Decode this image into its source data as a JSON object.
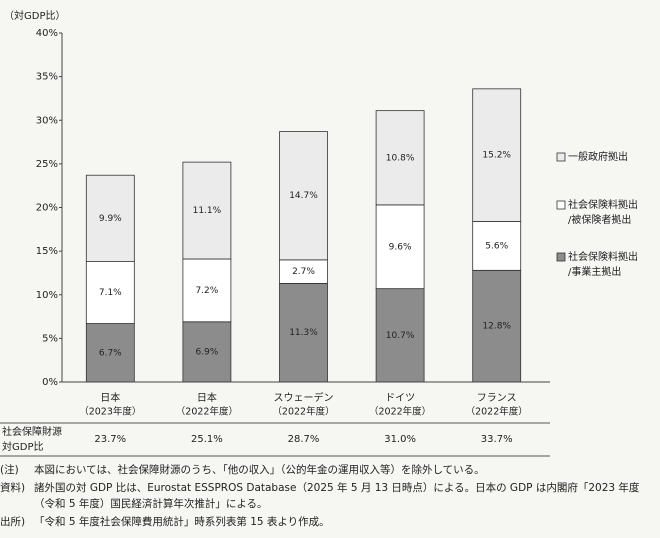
{
  "chart_data": {
    "type": "stacked_bar",
    "y_label": "（対GDP比）",
    "categories": [
      "日本",
      "日本",
      "スウェーデン",
      "ドイツ",
      "フランス"
    ],
    "periods": [
      "（2023年度）",
      "（2022年度）",
      "（2022年度）",
      "（2022年度）",
      "（2022年度）"
    ],
    "series": [
      {
        "name": "社会保険料拠出\n/事業主拠出",
        "color": "#8c8c8c",
        "values": [
          6.7,
          6.9,
          11.3,
          10.7,
          12.8
        ],
        "value_labels": [
          "6.7%",
          "6.9%",
          "11.3%",
          "10.7%",
          "12.8%"
        ]
      },
      {
        "name": "社会保険料拠出\n/被保険者拠出",
        "color": "#ffffff",
        "values": [
          7.1,
          7.2,
          2.7,
          9.6,
          5.6
        ],
        "value_labels": [
          "7.1%",
          "7.2%",
          "2.7%",
          "9.6%",
          "5.6%"
        ]
      },
      {
        "name": "一般政府拠出",
        "color": "#ebebeb",
        "values": [
          9.9,
          11.1,
          14.7,
          10.8,
          15.2
        ],
        "value_labels": [
          "9.9%",
          "11.1%",
          "14.7%",
          "10.8%",
          "15.2%"
        ]
      }
    ],
    "ylim": [
      0,
      40
    ],
    "yticks": [
      {
        "value": 0,
        "label": "0%"
      },
      {
        "value": 5,
        "label": "5%"
      },
      {
        "value": 10,
        "label": "10%"
      },
      {
        "value": 15,
        "label": "15%"
      },
      {
        "value": 20,
        "label": "20%"
      },
      {
        "value": 25,
        "label": "25%"
      },
      {
        "value": 30,
        "label": "30%"
      },
      {
        "value": 35,
        "label": "35%"
      },
      {
        "value": 40,
        "label": "40%"
      }
    ],
    "totals_label": "社会保障財源\n対GDP比",
    "totals": [
      "23.7%",
      "25.1%",
      "28.7%",
      "31.0%",
      "33.7%"
    ],
    "notes": [
      {
        "prefix": "(注)",
        "text": "本図においては、社会保障財源のうち、「他の収入」（公的年金の運用収入等）を除外している。"
      },
      {
        "prefix": "資料)",
        "text": "諸外国の対 GDP 比は、Eurostat ESSPROS Database（2025 年 5 月 13 日時点）による。日本の GDP は内閣府「2023 年度（令和 5 年度）国民経済計算年次推計」による。"
      },
      {
        "prefix": "出所)",
        "text": "「令和 5 年度社会保障費用統計」時系列表第 15 表より作成。"
      }
    ]
  }
}
